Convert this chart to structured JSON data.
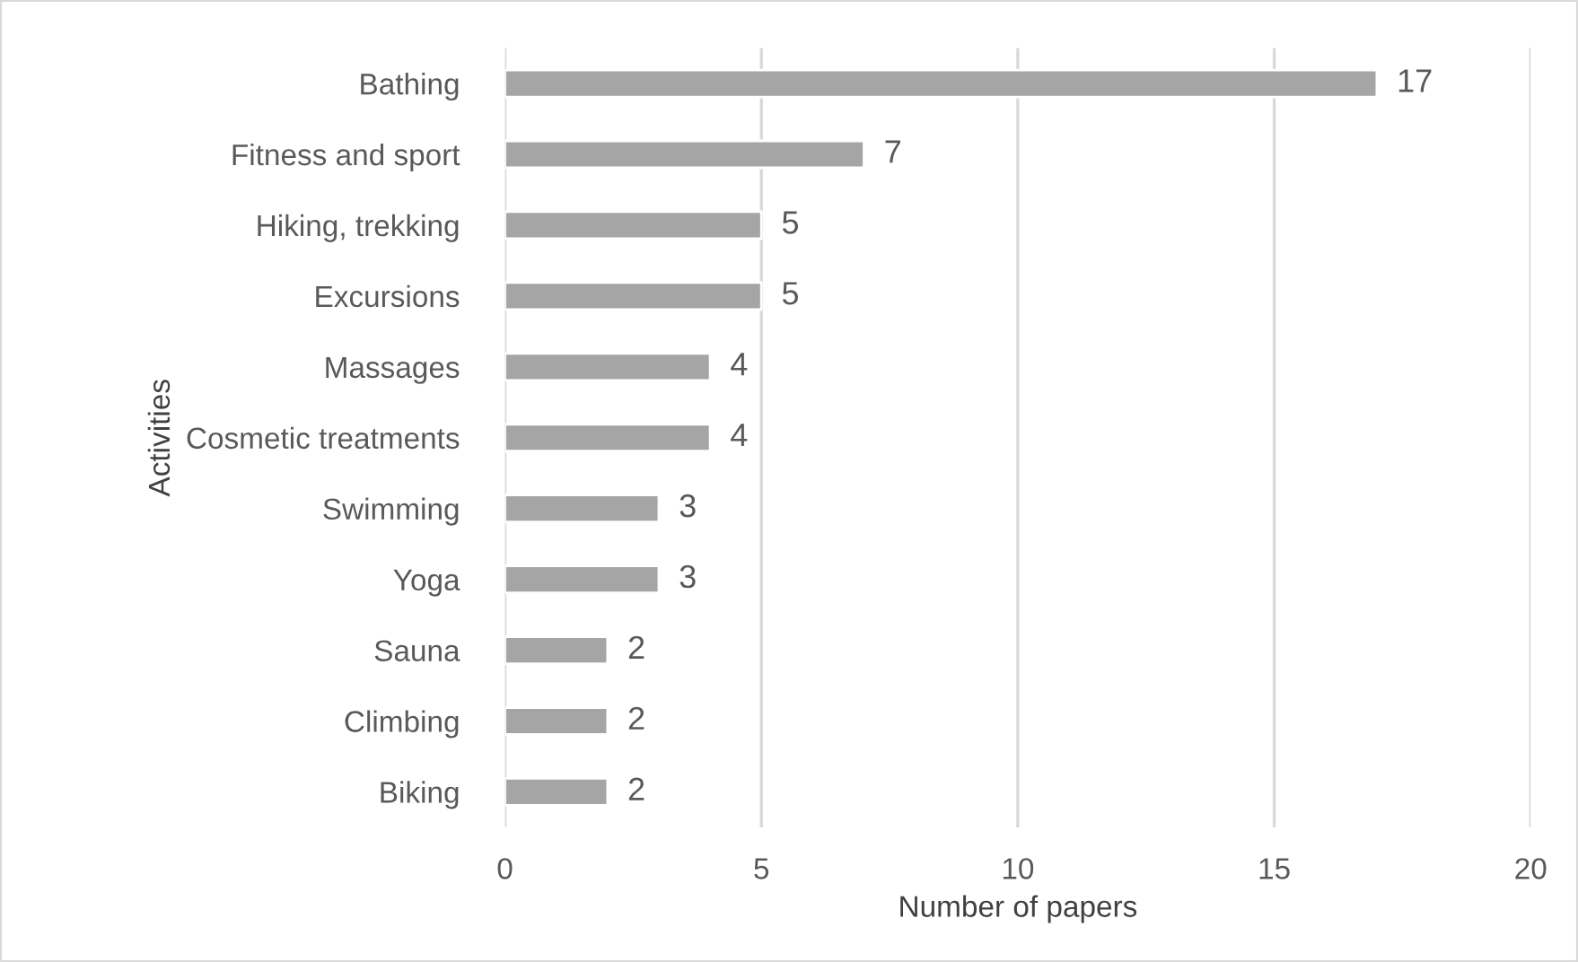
{
  "chart_data": {
    "type": "bar",
    "orientation": "horizontal",
    "categories": [
      "Bathing",
      "Fitness and sport",
      "Hiking, trekking",
      "Excursions",
      "Massages",
      "Cosmetic treatments",
      "Swimming",
      "Yoga",
      "Sauna",
      "Climbing",
      "Biking"
    ],
    "values": [
      17,
      7,
      5,
      5,
      4,
      4,
      3,
      3,
      2,
      2,
      2
    ],
    "color": "#a5a5a5",
    "xlabel": "Number of papers",
    "ylabel": "Activities",
    "xlim": [
      0,
      20
    ],
    "xticks": [
      0,
      5,
      10,
      15,
      20
    ],
    "grid": "x",
    "data_labels": true
  }
}
